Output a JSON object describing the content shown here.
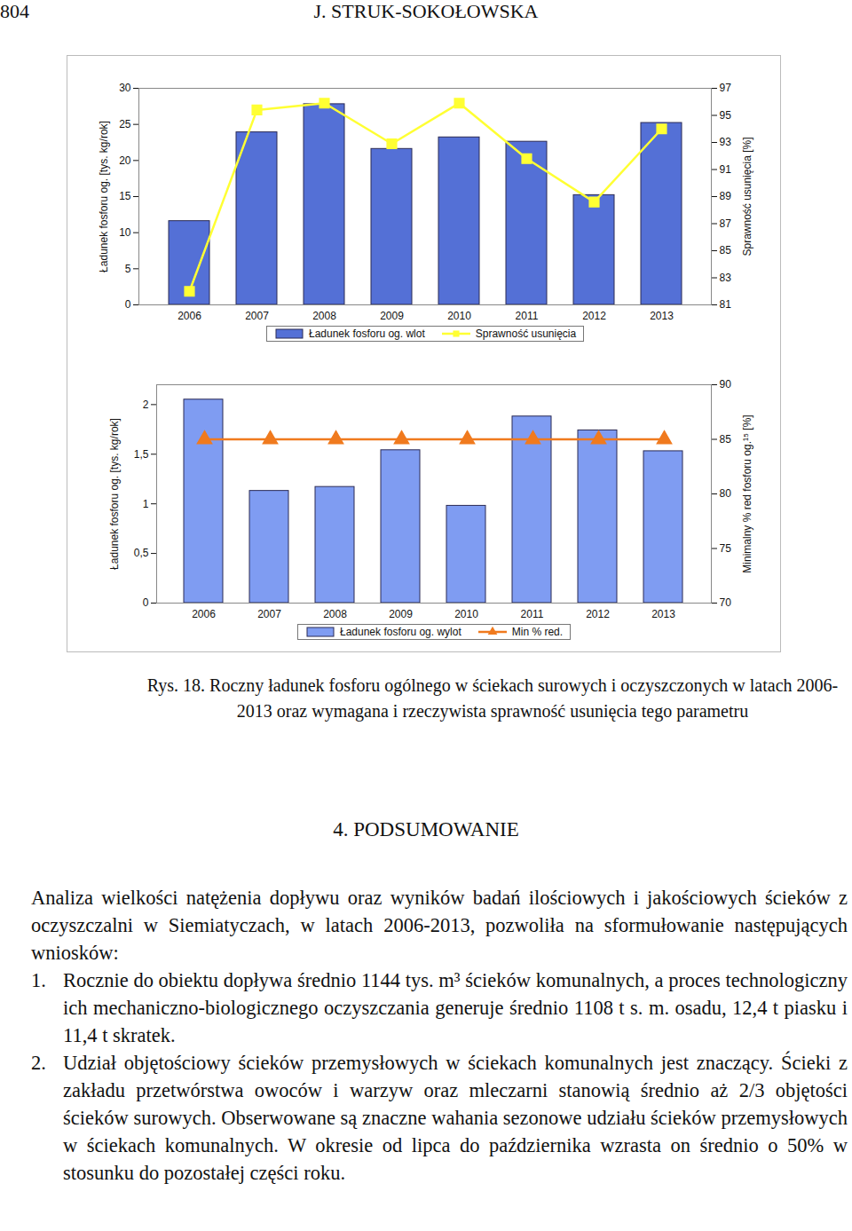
{
  "page": {
    "page_number": "804",
    "running_head": "J. STRUK-SOKOŁOWSKA",
    "caption": "Rys. 18. Roczny ładunek fosforu ogólnego w ściekach surowych i oczyszczonych w latach 2006-2013 oraz wymagana i rzeczywista sprawność usunięcia tego parametru",
    "section_title": "4. PODSUMOWANIE",
    "paragraph": "Analiza wielkości natężenia dopływu oraz wyników badań ilościowych i jakościowych ścieków z oczyszczalni w Siemiatyczach, w latach 2006-2013, pozwoliła na sformułowanie następujących wniosków:",
    "list": [
      {
        "number": "1.",
        "text": "Rocznie do obiektu dopływa średnio 1144 tys. m³ ścieków komunalnych, a proces technologiczny ich mechaniczno-biologicznego oczyszczania generuje średnio 1108 t s. m. osadu, 12,4 t piasku i 11,4 t skratek."
      },
      {
        "number": "2.",
        "text": "Udział objętościowy ścieków przemysłowych w ściekach komunalnych jest znaczący. Ścieki z zakładu przetwórstwa owoców i warzyw oraz mleczarni stanowią średnio aż 2/3 objętości ścieków surowych. Obserwowane są znaczne wahania sezonowe udziału ścieków przemysłowych w ściekach komunalnych. W okresie od lipca do października wzrasta on średnio o 50% w stosunku do pozostałej części roku."
      }
    ]
  },
  "chart_data": [
    {
      "type": "bar",
      "categories": [
        "2006",
        "2007",
        "2008",
        "2009",
        "2010",
        "2011",
        "2012",
        "2013"
      ],
      "series": [
        {
          "name": "Ładunek fosforu og. wlot",
          "type": "bar",
          "color": "#5470d6",
          "values": [
            11.6,
            23.9,
            27.8,
            21.6,
            23.2,
            22.6,
            15.2,
            25.2
          ]
        },
        {
          "name": "Sprawność usunięcia",
          "type": "line",
          "axis": "y2",
          "color": "#ffff33",
          "marker": "square",
          "values": [
            82.0,
            95.4,
            95.9,
            92.9,
            95.9,
            91.8,
            88.6,
            94.0
          ]
        }
      ],
      "ylabel": "Ładunek fosforu og. [tys. kg/rok]",
      "y2label": "Sprawność usunięcia [%]",
      "ylim": [
        0,
        30
      ],
      "yticks": [
        0,
        5,
        10,
        15,
        20,
        25,
        30
      ],
      "y2lim": [
        81,
        97
      ],
      "y2ticks": [
        81,
        83,
        85,
        87,
        89,
        91,
        93,
        95,
        97
      ],
      "legend": "bottom"
    },
    {
      "type": "bar",
      "categories": [
        "2006",
        "2007",
        "2008",
        "2009",
        "2010",
        "2011",
        "2012",
        "2013"
      ],
      "series": [
        {
          "name": "Ładunek fosforu og. wylot",
          "type": "bar",
          "color": "#7f9cf2",
          "values": [
            2.05,
            1.13,
            1.17,
            1.54,
            0.98,
            1.88,
            1.74,
            1.53
          ]
        },
        {
          "name": "Min % red.",
          "type": "line",
          "axis": "y2",
          "color": "#f07a1e",
          "marker": "triangle",
          "values": [
            85,
            85,
            85,
            85,
            85,
            85,
            85,
            85
          ]
        }
      ],
      "ylabel": "Ładunek fosforu og. [tys. kg/rok]",
      "y2label": "Minimalny % red fosforu og.¹⁵ [%]",
      "ylim": [
        0,
        2.2
      ],
      "yticks": [
        0,
        {
          "value": 0.5,
          "label": "0,5"
        },
        1,
        {
          "value": 1.5,
          "label": "1,5"
        },
        2
      ],
      "y2lim": [
        70,
        90
      ],
      "y2ticks": [
        70,
        75,
        80,
        85,
        90
      ],
      "legend": "bottom"
    }
  ]
}
